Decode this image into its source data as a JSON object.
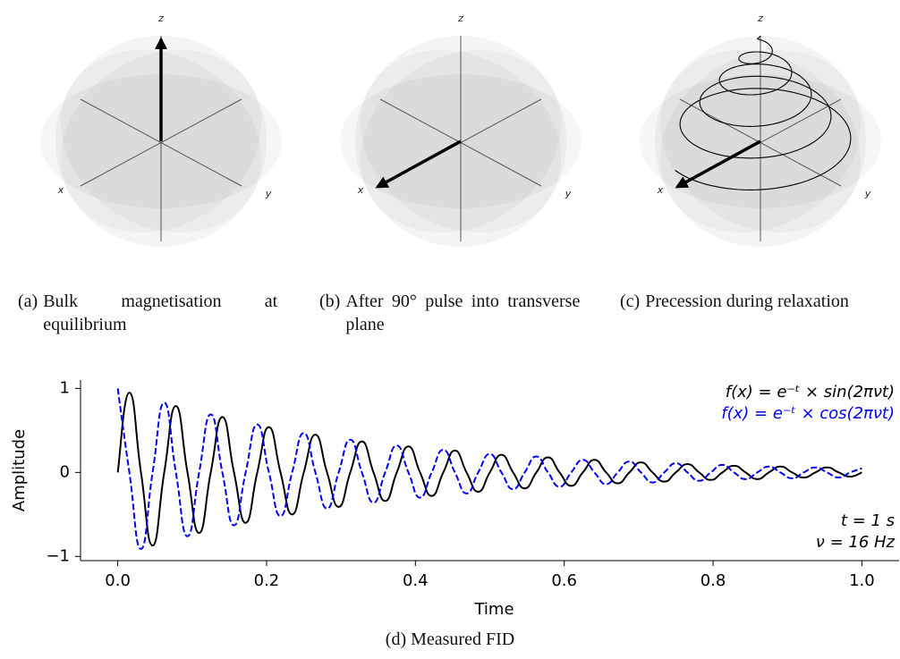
{
  "panels": [
    {
      "label": "(a)",
      "caption": "Bulk magnetisation at equilibrium",
      "axis_labels": {
        "x": "x",
        "y": "y",
        "z": "z"
      }
    },
    {
      "label": "(b)",
      "caption": "After 90° pulse into transverse plane",
      "axis_labels": {
        "x": "x",
        "y": "y",
        "z": "z"
      }
    },
    {
      "label": "(c)",
      "caption": "Precession during relaxation",
      "axis_labels": {
        "x": "x",
        "y": "y",
        "z": "z"
      }
    }
  ],
  "chart_data": {
    "type": "line",
    "label": "(d)",
    "caption": "Measured FID",
    "x_label": "Time",
    "y_label": "Amplitude",
    "x": [
      0,
      0.015625,
      0.03125,
      0.046875,
      0.0625,
      0.078125,
      0.09375,
      0.109375,
      0.125,
      0.140625,
      0.15625,
      0.171875,
      0.1875,
      0.203125,
      0.21875,
      0.234375,
      0.25,
      0.265625,
      0.28125,
      0.296875,
      0.3125,
      0.328125,
      0.34375,
      0.359375,
      0.375,
      0.390625,
      0.40625,
      0.421875,
      0.4375,
      0.453125,
      0.46875,
      0.484375,
      0.5,
      0.515625,
      0.53125,
      0.546875,
      0.5625,
      0.578125,
      0.59375,
      0.609375,
      0.625,
      0.640625,
      0.65625,
      0.671875,
      0.6875,
      0.703125,
      0.71875,
      0.734375,
      0.75,
      0.765625,
      0.78125,
      0.796875,
      0.8125,
      0.828125,
      0.84375,
      0.859375,
      0.875,
      0.890625,
      0.90625,
      0.921875,
      0.9375,
      0.953125,
      0.96875,
      0.984375,
      1
    ],
    "series": [
      {
        "name": "f(x) = e⁻ᵗ × sin(2πνt)",
        "color": "#000000",
        "linestyle": "solid",
        "values": [
          0,
          0.95,
          0,
          -0.87,
          0,
          0.79,
          0,
          -0.72,
          0,
          0.66,
          0,
          -0.6,
          0,
          0.54,
          0,
          -0.5,
          0,
          0.45,
          0,
          -0.41,
          0,
          0.37,
          0,
          -0.34,
          0,
          0.31,
          0,
          -0.28,
          0,
          0.26,
          0,
          -0.23,
          0,
          0.21,
          0,
          -0.19,
          0,
          0.18,
          0,
          -0.16,
          0,
          0.15,
          0,
          -0.13,
          0,
          0.12,
          0,
          -0.11,
          0,
          0.1,
          0,
          -0.09,
          0,
          0.08,
          0,
          -0.08,
          0,
          0.07,
          0,
          -0.06,
          0,
          0.06,
          0,
          -0.05,
          0
        ]
      },
      {
        "name": "f(x) = e⁻ᵗ × cos(2πνt)",
        "color": "#0000ff",
        "linestyle": "dashed",
        "values": [
          1,
          0,
          -0.91,
          0,
          0.83,
          0,
          -0.76,
          0,
          0.69,
          0,
          -0.63,
          0,
          0.57,
          0,
          -0.52,
          0,
          0.47,
          0,
          -0.43,
          0,
          0.39,
          0,
          -0.36,
          0,
          0.32,
          0,
          -0.3,
          0,
          0.27,
          0,
          -0.25,
          0,
          0.22,
          0,
          -0.2,
          0,
          0.19,
          0,
          -0.17,
          0,
          0.15,
          0,
          -0.14,
          0,
          0.13,
          0,
          -0.12,
          0,
          0.11,
          0,
          -0.1,
          0,
          0.09,
          0,
          -0.08,
          0,
          0.07,
          0,
          -0.07,
          0,
          0.06,
          0,
          -0.06,
          0,
          0.05
        ]
      }
    ],
    "annotations": [
      "t = 1 s",
      "ν = 16 Hz"
    ],
    "legend": "upper right",
    "grid": false,
    "xlim": [
      -0.05,
      1.05
    ],
    "ylim": [
      -1.05,
      1.1
    ],
    "xticks": [
      {
        "value": 0,
        "label": "0.0"
      },
      {
        "value": 0.2,
        "label": "0.2"
      },
      {
        "value": 0.4,
        "label": "0.4"
      },
      {
        "value": 0.6,
        "label": "0.6"
      },
      {
        "value": 0.8,
        "label": "0.8"
      },
      {
        "value": 1,
        "label": "1.0"
      }
    ],
    "yticks": [
      {
        "value": -1,
        "label": "−1"
      },
      0,
      1
    ]
  }
}
